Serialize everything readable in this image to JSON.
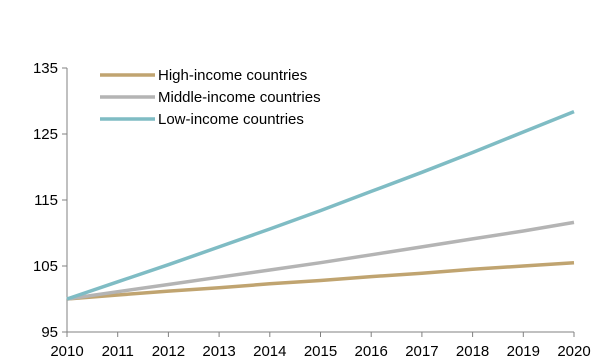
{
  "chart_data": {
    "type": "line",
    "title": "",
    "xlabel": "",
    "ylabel": "",
    "x": [
      "2010",
      "2011",
      "2012",
      "2013",
      "2014",
      "2015",
      "2016",
      "2017",
      "2018",
      "2019",
      "2020"
    ],
    "ylim": [
      95,
      135
    ],
    "yticks": [
      95,
      105,
      115,
      125,
      135
    ],
    "grid": false,
    "legend_position": "top-left",
    "series": [
      {
        "name": "High-income countries",
        "color": "#C0A470",
        "values": [
          100,
          100.6,
          101.2,
          101.7,
          102.3,
          102.8,
          103.4,
          103.9,
          104.5,
          105.0,
          105.5
        ]
      },
      {
        "name": "Middle-income countries",
        "color": "#B4B4B4",
        "values": [
          100,
          101.1,
          102.2,
          103.3,
          104.4,
          105.5,
          106.7,
          107.9,
          109.1,
          110.3,
          111.6
        ]
      },
      {
        "name": "Low-income countries",
        "color": "#7FBCC4",
        "values": [
          100,
          102.6,
          105.2,
          107.9,
          110.6,
          113.4,
          116.3,
          119.2,
          122.2,
          125.3,
          128.4
        ]
      }
    ]
  }
}
